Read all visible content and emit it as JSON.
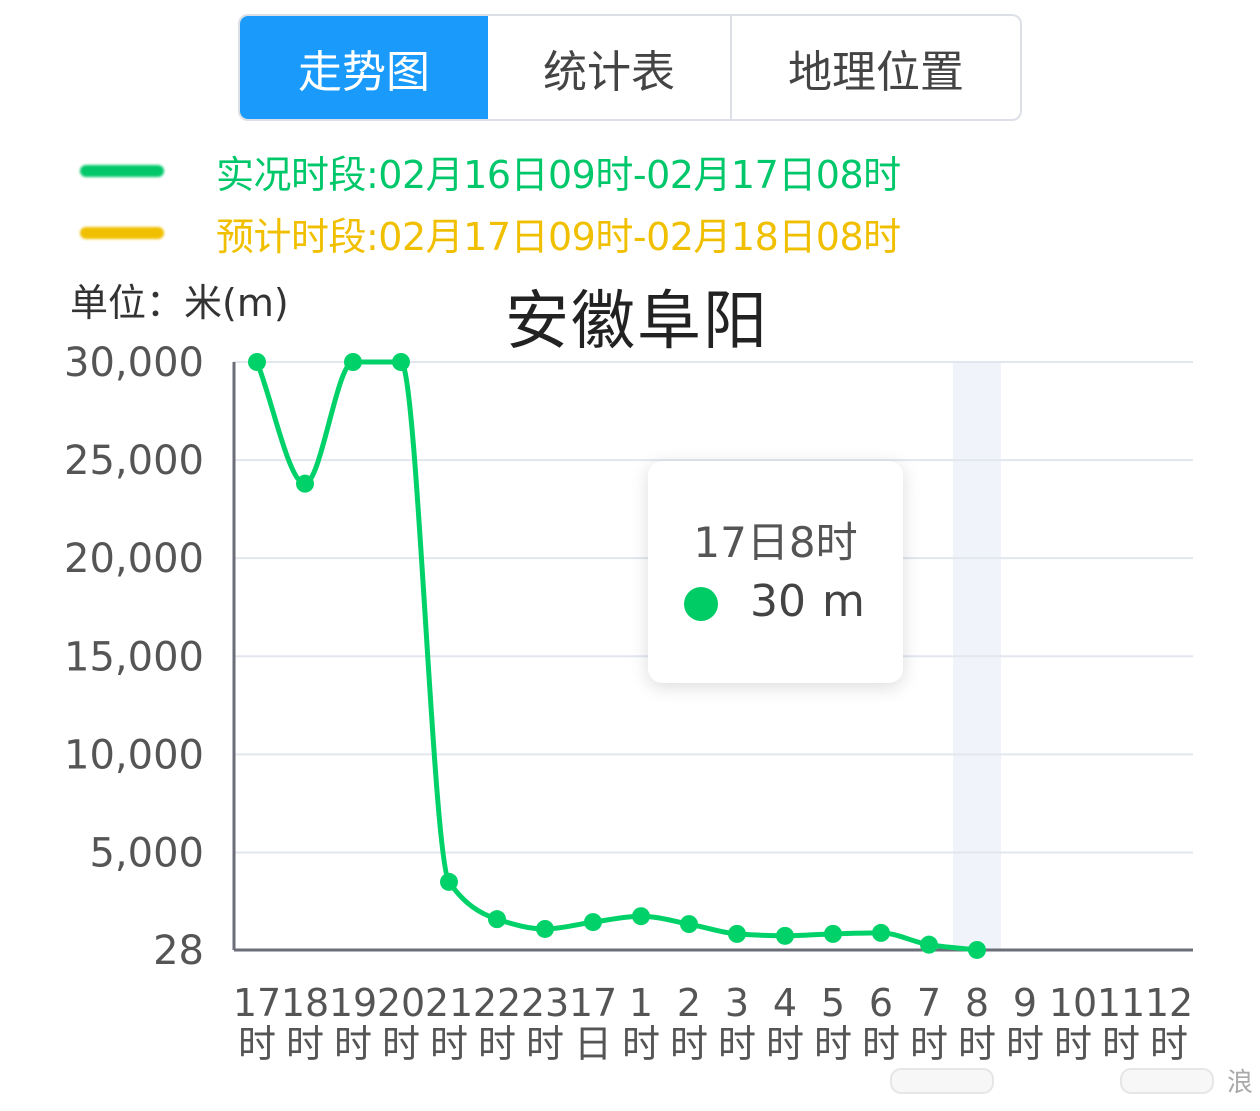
{
  "tabs": [
    {
      "label": "走势图",
      "active": true
    },
    {
      "label": "统计表",
      "active": false
    },
    {
      "label": "地理位置",
      "active": false
    }
  ],
  "legend": [
    {
      "label": "实况时段:02月16日09时-02月17日08时",
      "color": "#00c86a"
    },
    {
      "label": "预计时段:02月17日09时-02月18日08时",
      "color": "#f0c000"
    }
  ],
  "unit_label": "单位：米(m)",
  "tooltip": {
    "title": "17日8时",
    "value": "30",
    "unit": "m",
    "color": "#00cc66"
  },
  "watermark": "浪",
  "chart_data": {
    "type": "line",
    "title": "安徽阜阳",
    "ylabel": "单位：米(m)",
    "ylim": [
      28,
      30000
    ],
    "y_ticks": [
      "30,000",
      "25,000",
      "20,000",
      "15,000",
      "10,000",
      "5,000",
      "28"
    ],
    "y_tick_values": [
      30000,
      25000,
      20000,
      15000,
      10000,
      5000,
      28
    ],
    "grid": true,
    "categories": [
      "17\n时",
      "18\n时",
      "19\n时",
      "20\n时",
      "21\n时",
      "22\n时",
      "23\n时",
      "17\n日",
      "1\n时",
      "2\n时",
      "3\n时",
      "4\n时",
      "5\n时",
      "6\n时",
      "7\n时",
      "8\n时",
      "9\n时",
      "10\n时",
      "11\n时",
      "12\n时"
    ],
    "highlight_category": "8\n时",
    "series": [
      {
        "name": "实况时段:02月16日09时-02月17日08时",
        "color": "#00d269",
        "values": [
          30000,
          23800,
          30000,
          30000,
          3500,
          1600,
          1100,
          1450,
          1750,
          1350,
          850,
          750,
          850,
          900,
          300,
          30,
          null,
          null,
          null,
          null
        ]
      }
    ]
  }
}
